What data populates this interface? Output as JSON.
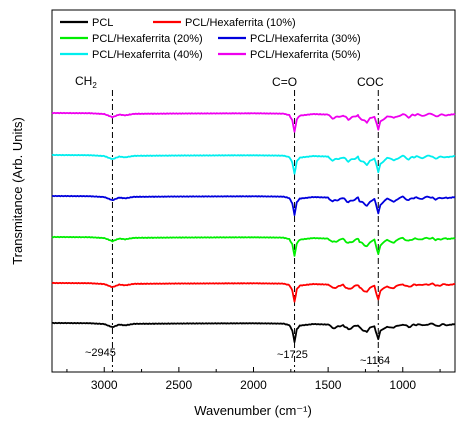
{
  "chart_data": {
    "type": "line",
    "title": "",
    "xlabel": "Wavenumber (cm⁻¹)",
    "ylabel": "Transmitance (Arb. Units)",
    "xlim": [
      3350,
      650
    ],
    "x_reversed": true,
    "xticks": [
      3000,
      2500,
      2000,
      1500,
      1000
    ],
    "xtick_labels": [
      "3000",
      "2500",
      "2000",
      "1500",
      "1000"
    ],
    "yticks_shown": false,
    "grid": false,
    "legend_position": "top-left",
    "x": [
      3350,
      3100,
      3000,
      2945,
      2900,
      2860,
      2800,
      2500,
      2000,
      1800,
      1760,
      1740,
      1725,
      1710,
      1690,
      1600,
      1500,
      1470,
      1420,
      1400,
      1365,
      1300,
      1290,
      1240,
      1220,
      1190,
      1164,
      1150,
      1105,
      1060,
      1045,
      1000,
      960,
      935,
      900,
      870,
      840,
      800,
      780,
      731,
      700,
      650
    ],
    "series": [
      {
        "name": "PCL",
        "color": "#000000",
        "offset": 0,
        "values": [
          0,
          0.2,
          1.0,
          4.0,
          1.5,
          2.2,
          0.8,
          0.5,
          0.3,
          0.6,
          2.0,
          7.0,
          18.0,
          6.0,
          2.5,
          1.0,
          1.5,
          5.0,
          3.0,
          2.0,
          6.0,
          1.8,
          4.5,
          9.0,
          5.0,
          3.0,
          16.0,
          8.0,
          3.0,
          5.0,
          3.5,
          1.0,
          4.0,
          2.0,
          1.5,
          2.5,
          1.2,
          1.0,
          3.0,
          1.5,
          2.0,
          1.0
        ]
      },
      {
        "name": "PCL/Hexaferrita (10%)",
        "color": "#ff0000",
        "offset": 1,
        "values": [
          0,
          0.2,
          1.0,
          4.0,
          1.5,
          2.2,
          0.8,
          0.5,
          0.3,
          0.6,
          2.0,
          7.0,
          18.0,
          6.0,
          2.5,
          1.0,
          1.5,
          5.0,
          3.0,
          2.0,
          6.0,
          1.8,
          4.5,
          9.0,
          5.0,
          3.0,
          16.0,
          8.0,
          3.0,
          5.0,
          3.5,
          1.0,
          4.0,
          2.0,
          1.5,
          2.5,
          1.2,
          1.0,
          3.0,
          1.5,
          2.0,
          1.0
        ]
      },
      {
        "name": "PCL/Hexaferrita (20%)",
        "color": "#00ee00",
        "offset": 2,
        "values": [
          0,
          0.2,
          1.0,
          4.0,
          1.5,
          2.2,
          0.8,
          0.5,
          0.3,
          0.6,
          2.0,
          7.0,
          18.0,
          6.0,
          2.5,
          1.0,
          1.5,
          5.0,
          3.0,
          2.0,
          6.0,
          1.8,
          4.5,
          9.0,
          5.0,
          3.0,
          16.0,
          8.0,
          3.0,
          5.0,
          3.5,
          1.0,
          4.0,
          2.0,
          1.5,
          2.5,
          1.2,
          1.0,
          3.0,
          1.5,
          2.0,
          1.0
        ]
      },
      {
        "name": "PCL/Hexaferrita (30%)",
        "color": "#0000dd",
        "offset": 3,
        "values": [
          0,
          0.2,
          1.0,
          4.0,
          1.5,
          2.2,
          0.8,
          0.5,
          0.3,
          0.6,
          2.0,
          7.0,
          18.0,
          6.0,
          2.5,
          1.0,
          1.5,
          5.0,
          3.0,
          2.0,
          6.0,
          1.8,
          4.5,
          9.0,
          5.0,
          3.0,
          16.0,
          8.0,
          3.0,
          5.0,
          3.5,
          1.0,
          4.0,
          2.0,
          1.5,
          2.5,
          1.2,
          1.0,
          3.0,
          1.5,
          2.0,
          1.0
        ]
      },
      {
        "name": "PCL/Hexaferrita (40%)",
        "color": "#00eeee",
        "offset": 4,
        "values": [
          0,
          0.2,
          1.0,
          4.0,
          1.5,
          2.2,
          0.8,
          0.5,
          0.3,
          0.6,
          2.0,
          7.0,
          18.0,
          6.0,
          2.5,
          1.0,
          1.5,
          5.0,
          3.0,
          2.0,
          6.0,
          1.8,
          4.5,
          9.0,
          5.0,
          3.0,
          16.0,
          8.0,
          3.0,
          5.0,
          3.5,
          1.0,
          4.0,
          2.0,
          1.5,
          2.5,
          1.2,
          1.0,
          3.0,
          1.5,
          2.0,
          1.0
        ]
      },
      {
        "name": "PCL/Hexaferrita (50%)",
        "color": "#ee00ee",
        "offset": 5,
        "values": [
          0,
          0.2,
          1.0,
          4.0,
          1.5,
          2.2,
          0.8,
          0.5,
          0.3,
          0.6,
          2.0,
          7.0,
          18.0,
          6.0,
          2.5,
          1.0,
          1.5,
          5.0,
          3.0,
          2.0,
          6.0,
          1.8,
          4.5,
          9.0,
          5.0,
          3.0,
          16.0,
          8.0,
          3.0,
          5.0,
          3.5,
          1.0,
          4.0,
          2.0,
          1.5,
          2.5,
          1.2,
          1.0,
          3.0,
          1.5,
          2.0,
          1.0
        ]
      }
    ],
    "reference_lines": [
      {
        "x": 2945,
        "group": "CH₂",
        "peak_label": "~2945"
      },
      {
        "x": 1725,
        "group": "C=O",
        "peak_label": "~1725"
      },
      {
        "x": 1164,
        "group": "COC",
        "peak_label": "~1164"
      }
    ],
    "group_labels": {
      "ch2_main": "CH",
      "ch2_sub": "2"
    }
  }
}
